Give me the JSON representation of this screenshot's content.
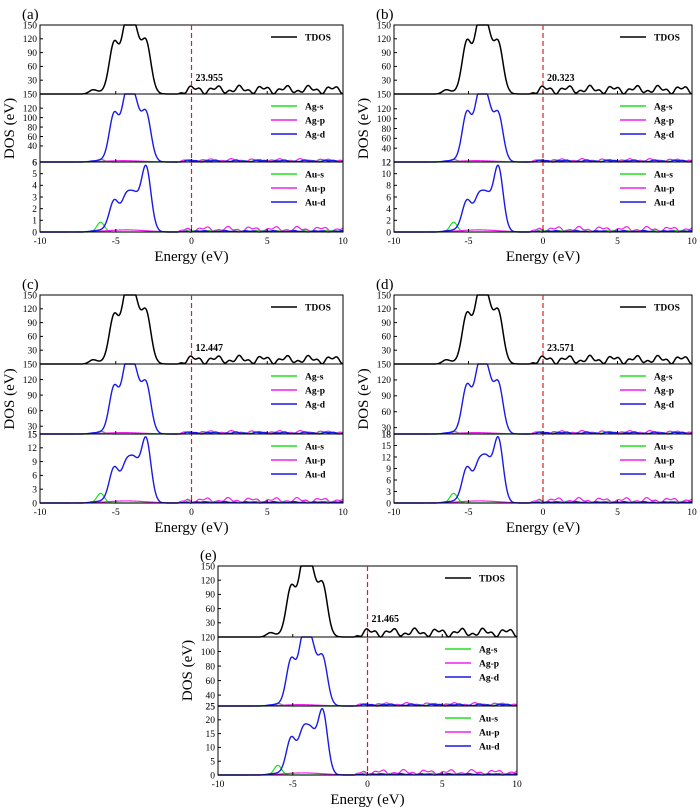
{
  "figure": {
    "ylabel": "DOS (eV)",
    "xlabel": "Energy (eV)",
    "colors": {
      "total": "#000000",
      "s": "#22dd22",
      "p": "#ee22ee",
      "d": "#1a1ae6",
      "fermi": "#e02020"
    }
  },
  "chart_data": [
    {
      "type": "line",
      "label": "(a)",
      "fermi_value": "23.955",
      "xlim": [
        -10,
        10
      ],
      "xticks": [
        "-10",
        "-5",
        "0",
        "5",
        "10"
      ],
      "subplots": [
        {
          "ylim": [
            0,
            150
          ],
          "yticks": [
            "30",
            "60",
            "90",
            "120",
            "150"
          ],
          "series": [
            {
              "name": "TDOS",
              "key": "total"
            }
          ]
        },
        {
          "ylim": [
            6,
            150
          ],
          "yticks": [
            "6",
            "40",
            "60",
            "80",
            "100",
            "120",
            "150"
          ],
          "series": [
            {
              "name": "Ag-s",
              "key": "s"
            },
            {
              "name": "Ag-p",
              "key": "p"
            },
            {
              "name": "Ag-d",
              "key": "d"
            }
          ]
        },
        {
          "ylim": [
            0,
            6
          ],
          "yticks": [
            "0",
            "1",
            "2",
            "3",
            "4",
            "5",
            "6"
          ],
          "series": [
            {
              "name": "Au-s",
              "key": "s"
            },
            {
              "name": "Au-p",
              "key": "p"
            },
            {
              "name": "Au-d",
              "key": "d"
            }
          ]
        }
      ]
    },
    {
      "type": "line",
      "label": "(b)",
      "fermi_value": "20.323",
      "xlim": [
        -10,
        10
      ],
      "xticks": [
        "-10",
        "-5",
        "0",
        "5",
        "10"
      ],
      "subplots": [
        {
          "ylim": [
            0,
            150
          ],
          "yticks": [
            "30",
            "60",
            "90",
            "120",
            "150"
          ],
          "series": [
            {
              "name": "TDOS",
              "key": "total"
            }
          ]
        },
        {
          "ylim": [
            12,
            150
          ],
          "yticks": [
            "12",
            "40",
            "60",
            "80",
            "100",
            "120",
            "150"
          ],
          "series": [
            {
              "name": "Ag-s",
              "key": "s"
            },
            {
              "name": "Ag-p",
              "key": "p"
            },
            {
              "name": "Ag-d",
              "key": "d"
            }
          ]
        },
        {
          "ylim": [
            0,
            12
          ],
          "yticks": [
            "0",
            "2",
            "4",
            "6",
            "8",
            "10",
            "12"
          ],
          "series": [
            {
              "name": "Au-s",
              "key": "s"
            },
            {
              "name": "Au-p",
              "key": "p"
            },
            {
              "name": "Au-d",
              "key": "d"
            }
          ]
        }
      ]
    },
    {
      "type": "line",
      "label": "(c)",
      "fermi_value": "12.447",
      "xlim": [
        -10,
        10
      ],
      "xticks": [
        "-10",
        "-5",
        "0",
        "5",
        "10"
      ],
      "subplots": [
        {
          "ylim": [
            0,
            150
          ],
          "yticks": [
            "30",
            "60",
            "90",
            "120",
            "150"
          ],
          "series": [
            {
              "name": "TDOS",
              "key": "total"
            }
          ]
        },
        {
          "ylim": [
            15,
            150
          ],
          "yticks": [
            "15",
            "30",
            "60",
            "90",
            "120",
            "150"
          ],
          "series": [
            {
              "name": "Ag-s",
              "key": "s"
            },
            {
              "name": "Ag-p",
              "key": "p"
            },
            {
              "name": "Ag-d",
              "key": "d"
            }
          ]
        },
        {
          "ylim": [
            0,
            15
          ],
          "yticks": [
            "0",
            "3",
            "6",
            "9",
            "12",
            "15"
          ],
          "series": [
            {
              "name": "Au-s",
              "key": "s"
            },
            {
              "name": "Au-p",
              "key": "p"
            },
            {
              "name": "Au-d",
              "key": "d"
            }
          ]
        }
      ]
    },
    {
      "type": "line",
      "label": "(d)",
      "fermi_value": "23.571",
      "xlim": [
        -10,
        10
      ],
      "xticks": [
        "-10",
        "-5",
        "0",
        "5",
        "10"
      ],
      "subplots": [
        {
          "ylim": [
            0,
            150
          ],
          "yticks": [
            "30",
            "60",
            "90",
            "120",
            "150"
          ],
          "series": [
            {
              "name": "TDOS",
              "key": "total"
            }
          ]
        },
        {
          "ylim": [
            18,
            150
          ],
          "yticks": [
            "18",
            "30",
            "60",
            "90",
            "120",
            "150"
          ],
          "series": [
            {
              "name": "Ag-s",
              "key": "s"
            },
            {
              "name": "Ag-p",
              "key": "p"
            },
            {
              "name": "Ag-d",
              "key": "d"
            }
          ]
        },
        {
          "ylim": [
            0,
            18
          ],
          "yticks": [
            "0",
            "3",
            "6",
            "9",
            "12",
            "15",
            "18"
          ],
          "series": [
            {
              "name": "Au-s",
              "key": "s"
            },
            {
              "name": "Au-p",
              "key": "p"
            },
            {
              "name": "Au-d",
              "key": "d"
            }
          ]
        }
      ]
    },
    {
      "type": "line",
      "label": "(e)",
      "fermi_value": "21.465",
      "xlim": [
        -10,
        10
      ],
      "xticks": [
        "-10",
        "-5",
        "0",
        "5",
        "10"
      ],
      "subplots": [
        {
          "ylim": [
            0,
            150
          ],
          "yticks": [
            "30",
            "60",
            "90",
            "120",
            "150"
          ],
          "series": [
            {
              "name": "TDOS",
              "key": "total"
            }
          ]
        },
        {
          "ylim": [
            25,
            120
          ],
          "yticks": [
            "25",
            "40",
            "60",
            "80",
            "100",
            "120"
          ],
          "series": [
            {
              "name": "Ag-s",
              "key": "s"
            },
            {
              "name": "Ag-p",
              "key": "p"
            },
            {
              "name": "Ag-d",
              "key": "d"
            }
          ]
        },
        {
          "ylim": [
            0,
            25
          ],
          "yticks": [
            "0",
            "5",
            "10",
            "15",
            "20",
            "25"
          ],
          "series": [
            {
              "name": "Au-s",
              "key": "s"
            },
            {
              "name": "Au-p",
              "key": "p"
            },
            {
              "name": "Au-d",
              "key": "d"
            }
          ]
        }
      ]
    }
  ]
}
